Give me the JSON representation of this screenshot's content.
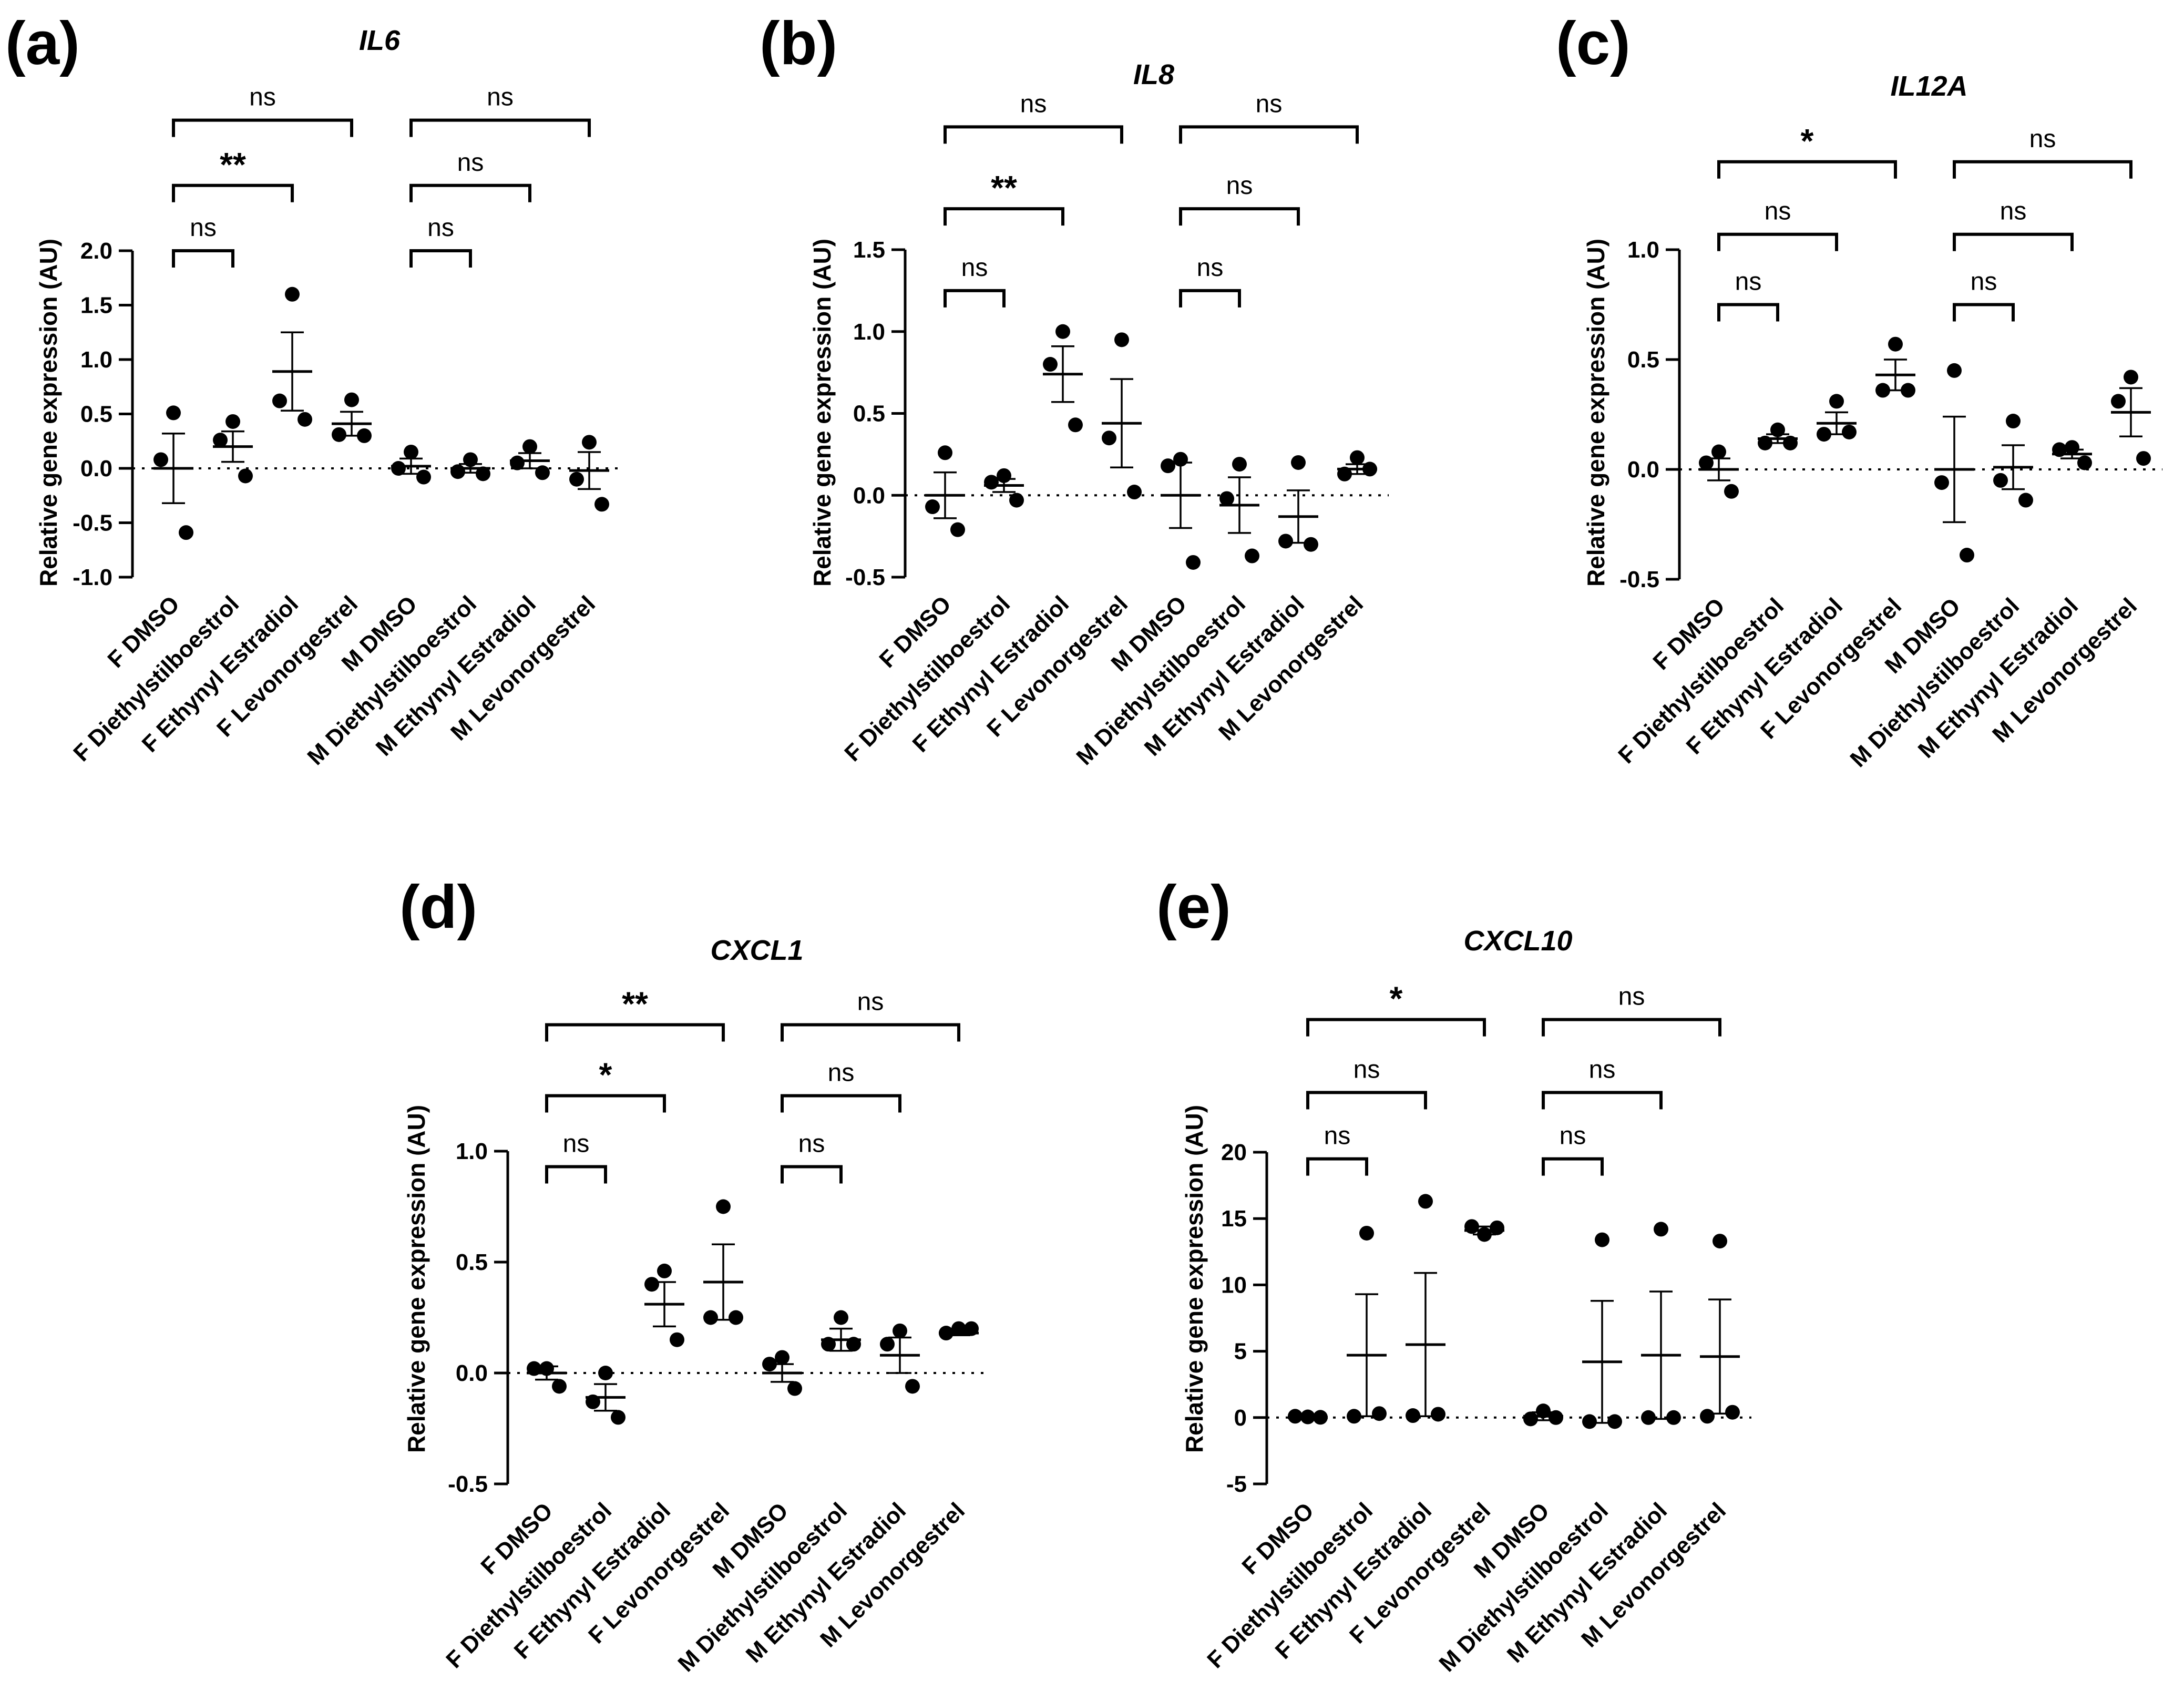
{
  "chart_data": [
    {
      "panel": "(a)",
      "type": "scatter",
      "title": "IL6",
      "ylabel": "Relative gene expression (AU)",
      "ylim": [
        -1.0,
        2.0
      ],
      "yticks": [
        "-1.0",
        "-0.5",
        "0.0",
        "0.5",
        "1.0",
        "1.5",
        "2.0"
      ],
      "categories": [
        "F DMSO",
        "F Diethylstilboestrol",
        "F Ethynyl Estradiol",
        "F Levonorgestrel",
        "M DMSO",
        "M Diethylstilboestrol",
        "M Ethynyl Estradiol",
        "M Levonorgestrel"
      ],
      "points": [
        [
          0.51,
          0.08,
          -0.59
        ],
        [
          0.43,
          0.26,
          -0.07
        ],
        [
          1.6,
          0.62,
          0.45
        ],
        [
          0.63,
          0.31,
          0.3
        ],
        [
          0.15,
          0.0,
          -0.08
        ],
        [
          0.08,
          -0.03,
          -0.05
        ],
        [
          0.2,
          0.05,
          -0.04
        ],
        [
          0.24,
          -0.1,
          -0.33
        ]
      ],
      "means": [
        0.0,
        0.2,
        0.89,
        0.41,
        0.02,
        0.0,
        0.07,
        -0.02
      ],
      "sem": [
        0.32,
        0.14,
        0.36,
        0.11,
        0.07,
        0.04,
        0.07,
        0.17
      ],
      "comparisons": [
        {
          "from": 0,
          "to": 1,
          "label": "ns",
          "y": 2.0
        },
        {
          "from": 0,
          "to": 2,
          "label": "**",
          "y": 2.6
        },
        {
          "from": 0,
          "to": 3,
          "label": "ns",
          "y": 3.2
        },
        {
          "from": 4,
          "to": 5,
          "label": "ns",
          "y": 2.0
        },
        {
          "from": 4,
          "to": 6,
          "label": "ns",
          "y": 2.6
        },
        {
          "from": 4,
          "to": 7,
          "label": "ns",
          "y": 3.2
        }
      ]
    },
    {
      "panel": "(b)",
      "type": "scatter",
      "title": "IL8",
      "ylabel": "Relative gene expression (AU)",
      "ylim": [
        -0.5,
        1.5
      ],
      "yticks": [
        "-0.5",
        "0.0",
        "0.5",
        "1.0",
        "1.5"
      ],
      "categories": [
        "F DMSO",
        "F Diethylstilboestrol",
        "F Ethynyl Estradiol",
        "F Levonorgestrel",
        "M DMSO",
        "M Diethylstilboestrol",
        "M Ethynyl Estradiol",
        "M Levonorgestrel"
      ],
      "points": [
        [
          0.26,
          -0.07,
          -0.21
        ],
        [
          0.12,
          0.08,
          -0.03
        ],
        [
          1.0,
          0.8,
          0.43
        ],
        [
          0.95,
          0.35,
          0.02
        ],
        [
          0.22,
          0.18,
          -0.41
        ],
        [
          0.19,
          -0.02,
          -0.37
        ],
        [
          0.2,
          -0.28,
          -0.3
        ],
        [
          0.23,
          0.13,
          0.16
        ]
      ],
      "means": [
        0.0,
        0.06,
        0.74,
        0.44,
        0.0,
        -0.06,
        -0.13,
        0.16
      ],
      "sem": [
        0.14,
        0.04,
        0.17,
        0.27,
        0.2,
        0.17,
        0.16,
        0.03
      ],
      "comparisons": [
        {
          "from": 0,
          "to": 1,
          "label": "ns",
          "y": 1.25
        },
        {
          "from": 0,
          "to": 2,
          "label": "**",
          "y": 1.75
        },
        {
          "from": 0,
          "to": 3,
          "label": "ns",
          "y": 2.25
        },
        {
          "from": 4,
          "to": 5,
          "label": "ns",
          "y": 1.25
        },
        {
          "from": 4,
          "to": 6,
          "label": "ns",
          "y": 1.75
        },
        {
          "from": 4,
          "to": 7,
          "label": "ns",
          "y": 2.25
        }
      ]
    },
    {
      "panel": "(c)",
      "type": "scatter",
      "title": "IL12A",
      "ylabel": "Relative gene expression (AU)",
      "ylim": [
        -0.5,
        1.0
      ],
      "yticks": [
        "-0.5",
        "0.0",
        "0.5",
        "1.0"
      ],
      "categories": [
        "F DMSO",
        "F Diethylstilboestrol",
        "F Ethynyl Estradiol",
        "F Levonorgestrel",
        "M DMSO",
        "M Diethylstilboestrol",
        "M Ethynyl Estradiol",
        "M Levonorgestrel"
      ],
      "points": [
        [
          0.08,
          0.03,
          -0.1
        ],
        [
          0.18,
          0.12,
          0.12
        ],
        [
          0.31,
          0.16,
          0.17
        ],
        [
          0.57,
          0.36,
          0.36
        ],
        [
          0.45,
          -0.06,
          -0.39
        ],
        [
          0.22,
          -0.05,
          -0.14
        ],
        [
          0.1,
          0.09,
          0.03
        ],
        [
          0.42,
          0.31,
          0.05
        ]
      ],
      "means": [
        0.0,
        0.14,
        0.21,
        0.43,
        0.0,
        0.01,
        0.07,
        0.26
      ],
      "sem": [
        0.05,
        0.02,
        0.05,
        0.07,
        0.24,
        0.1,
        0.02,
        0.11
      ],
      "comparisons": [
        {
          "from": 0,
          "to": 1,
          "label": "ns",
          "y": 0.75
        },
        {
          "from": 0,
          "to": 2,
          "label": "ns",
          "y": 1.07
        },
        {
          "from": 0,
          "to": 3,
          "label": "*",
          "y": 1.4
        },
        {
          "from": 4,
          "to": 5,
          "label": "ns",
          "y": 0.75
        },
        {
          "from": 4,
          "to": 6,
          "label": "ns",
          "y": 1.07
        },
        {
          "from": 4,
          "to": 7,
          "label": "ns",
          "y": 1.4
        }
      ]
    },
    {
      "panel": "(d)",
      "type": "scatter",
      "title": "CXCL1",
      "ylabel": "Relative gene expression (AU)",
      "ylim": [
        -0.5,
        1.0
      ],
      "yticks": [
        "-0.5",
        "0.0",
        "0.5",
        "1.0"
      ],
      "categories": [
        "F DMSO",
        "F Diethylstilboestrol",
        "F Ethynyl Estradiol",
        "F Levonorgestrel",
        "M DMSO",
        "M Diethylstilboestrol",
        "M Ethynyl Estradiol",
        "M Levonorgestrel"
      ],
      "points": [
        [
          0.02,
          0.02,
          -0.06
        ],
        [
          0.0,
          -0.13,
          -0.2
        ],
        [
          0.46,
          0.4,
          0.15
        ],
        [
          0.75,
          0.25,
          0.25
        ],
        [
          0.07,
          0.04,
          -0.07
        ],
        [
          0.25,
          0.13,
          0.13
        ],
        [
          0.19,
          0.13,
          -0.06
        ],
        [
          0.2,
          0.18,
          0.2
        ]
      ],
      "means": [
        0.0,
        -0.11,
        0.31,
        0.41,
        0.0,
        0.15,
        0.08,
        0.18
      ],
      "sem": [
        0.03,
        0.06,
        0.1,
        0.17,
        0.04,
        0.05,
        0.08,
        0.01
      ],
      "comparisons": [
        {
          "from": 0,
          "to": 1,
          "label": "ns",
          "y": 0.93
        },
        {
          "from": 0,
          "to": 2,
          "label": "*",
          "y": 1.25
        },
        {
          "from": 0,
          "to": 3,
          "label": "**",
          "y": 1.57
        },
        {
          "from": 4,
          "to": 5,
          "label": "ns",
          "y": 0.93
        },
        {
          "from": 4,
          "to": 6,
          "label": "ns",
          "y": 1.25
        },
        {
          "from": 4,
          "to": 7,
          "label": "ns",
          "y": 1.57
        }
      ]
    },
    {
      "panel": "(e)",
      "type": "scatter",
      "title": "CXCL10",
      "ylabel": "Relative gene expression (AU)",
      "ylim": [
        -5,
        20
      ],
      "yticks": [
        "-5",
        "0",
        "5",
        "10",
        "15",
        "20"
      ],
      "categories": [
        "F DMSO",
        "F Diethylstilboestrol",
        "F Ethynyl Estradiol",
        "F Levonorgestrel",
        "M DMSO",
        "M Diethylstilboestrol",
        "M Ethynyl Estradiol",
        "M Levonorgestrel"
      ],
      "points": [
        [
          0.05,
          0.1,
          0.02
        ],
        [
          13.9,
          0.1,
          0.3
        ],
        [
          16.3,
          0.15,
          0.25
        ],
        [
          13.8,
          14.4,
          14.3
        ],
        [
          0.5,
          -0.1,
          0.0
        ],
        [
          13.4,
          -0.3,
          -0.3
        ],
        [
          14.2,
          0.0,
          0.0
        ],
        [
          13.3,
          0.1,
          0.4
        ]
      ],
      "means": [
        0.0,
        4.7,
        5.5,
        14.1,
        0.1,
        4.2,
        4.7,
        4.6
      ],
      "sem": [
        0.1,
        4.6,
        5.4,
        0.3,
        0.3,
        4.6,
        4.8,
        4.3
      ],
      "comparisons": [
        {
          "from": 0,
          "to": 1,
          "label": "ns",
          "y": 19.5
        },
        {
          "from": 0,
          "to": 2,
          "label": "ns",
          "y": 24.5
        },
        {
          "from": 0,
          "to": 3,
          "label": "*",
          "y": 30.0
        },
        {
          "from": 4,
          "to": 5,
          "label": "ns",
          "y": 19.5
        },
        {
          "from": 4,
          "to": 6,
          "label": "ns",
          "y": 24.5
        },
        {
          "from": 4,
          "to": 7,
          "label": "ns",
          "y": 30.0
        }
      ]
    }
  ]
}
